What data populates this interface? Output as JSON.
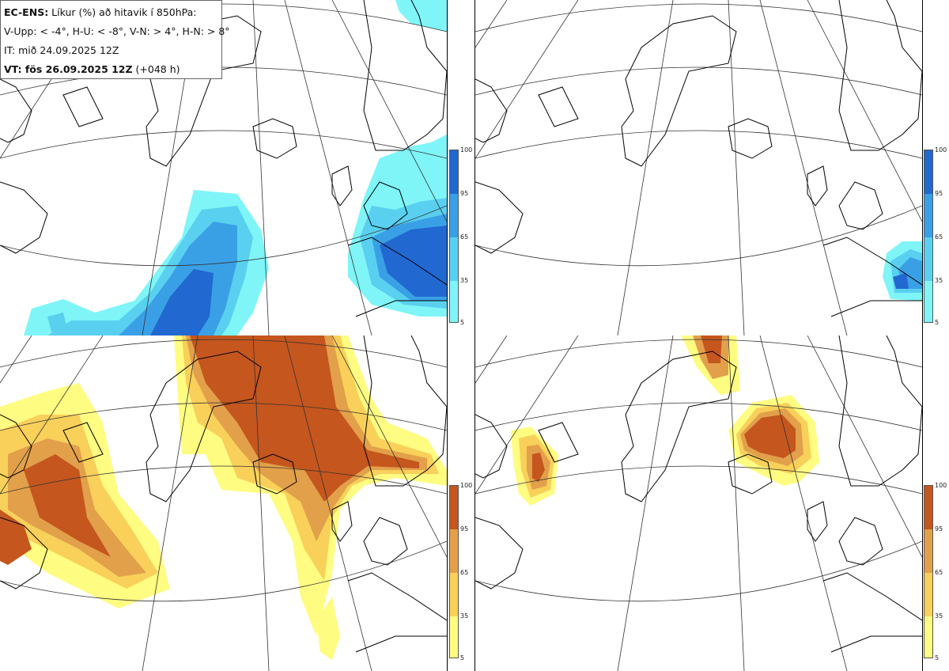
{
  "info": {
    "line1_bold": "EC-ENS:",
    "line1_rest": " Líkur (%) að hitavik í 850hPa:",
    "line2": "V-Upp: < -4°, H-U: < -8°, V-N: > 4°, H-N: > 8°",
    "line3": "IT: mið 24.09.2025 12Z",
    "line4_bold": "VT: fös 26.09.2025 12Z",
    "line4_rest": " (+048 h)"
  },
  "colorbar_ticks": [
    "100",
    "95",
    "65",
    "35",
    "5"
  ],
  "colors": {
    "cold": [
      "#7ff5f8",
      "#5ad0f0",
      "#3aa0e6",
      "#2168d0"
    ],
    "warm": [
      "#fffc82",
      "#f8d05a",
      "#e2a04a",
      "#c4561e"
    ],
    "coast": "#000000",
    "grid": "#333333"
  }
}
